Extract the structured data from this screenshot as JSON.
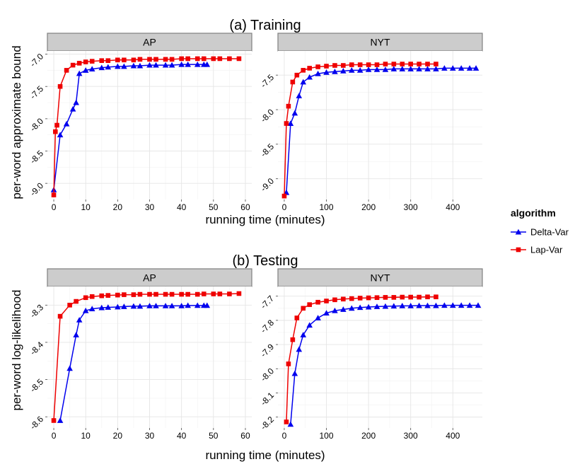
{
  "figure": {
    "legend": {
      "title": "algorithm",
      "items": [
        {
          "label": "Delta-Var",
          "color": "#0000ee",
          "marker": "triangle"
        },
        {
          "label": "Lap-Var",
          "color": "#ee0000",
          "marker": "square"
        }
      ]
    }
  },
  "chart_data": [
    {
      "type": "line",
      "title": "(a) Training",
      "panel": "AP",
      "xlabel": "running time (minutes)",
      "ylabel": "per-word approximate bound",
      "xlim": [
        -2,
        62
      ],
      "ylim": [
        -9.25,
        -6.95
      ],
      "xticks": [
        0,
        10,
        20,
        30,
        40,
        50,
        60
      ],
      "yticks": [
        -9.0,
        -8.5,
        -8.0,
        -7.5,
        -7.0
      ],
      "ytick_labels": [
        "-9.0",
        "-8.5",
        "-8.0",
        "-7.5",
        "-7.0"
      ],
      "grid": true,
      "series": [
        {
          "name": "Delta-Var",
          "x": [
            0,
            2,
            4,
            6,
            7,
            8,
            10,
            12,
            15,
            17,
            20,
            22,
            25,
            27,
            30,
            32,
            35,
            37,
            40,
            42,
            45,
            47,
            48
          ],
          "y": [
            -9.1,
            -8.25,
            -8.08,
            -7.85,
            -7.75,
            -7.3,
            -7.25,
            -7.23,
            -7.21,
            -7.2,
            -7.19,
            -7.19,
            -7.18,
            -7.18,
            -7.17,
            -7.17,
            -7.17,
            -7.17,
            -7.16,
            -7.16,
            -7.16,
            -7.16,
            -7.16
          ]
        },
        {
          "name": "Lap-Var",
          "x": [
            0,
            0.5,
            1,
            2,
            4,
            6,
            8,
            10,
            12,
            15,
            17,
            20,
            22,
            25,
            27,
            30,
            32,
            35,
            37,
            40,
            42,
            45,
            47,
            50,
            52,
            55,
            58
          ],
          "y": [
            -9.18,
            -8.2,
            -8.1,
            -7.5,
            -7.25,
            -7.17,
            -7.14,
            -7.12,
            -7.11,
            -7.1,
            -7.1,
            -7.09,
            -7.09,
            -7.09,
            -7.08,
            -7.08,
            -7.08,
            -7.08,
            -7.08,
            -7.07,
            -7.07,
            -7.07,
            -7.07,
            -7.07,
            -7.07,
            -7.07,
            -7.07
          ]
        }
      ]
    },
    {
      "type": "line",
      "title": "(a) Training",
      "panel": "NYT",
      "xlabel": "running time (minutes)",
      "ylabel": "per-word approximate bound",
      "xlim": [
        -15,
        470
      ],
      "ylim": [
        -9.3,
        -7.15
      ],
      "xticks": [
        0,
        100,
        200,
        300,
        400
      ],
      "yticks": [
        -9.0,
        -8.5,
        -8.0,
        -7.5
      ],
      "ytick_labels": [
        "-9.0",
        "-8.5",
        "-8.0",
        "-7.5"
      ],
      "grid": true,
      "series": [
        {
          "name": "Delta-Var",
          "x": [
            5,
            15,
            25,
            35,
            45,
            60,
            80,
            100,
            120,
            140,
            160,
            180,
            200,
            220,
            240,
            260,
            280,
            300,
            320,
            340,
            360,
            380,
            400,
            420,
            440,
            455
          ],
          "y": [
            -9.2,
            -8.2,
            -8.05,
            -7.8,
            -7.6,
            -7.53,
            -7.48,
            -7.46,
            -7.45,
            -7.44,
            -7.43,
            -7.43,
            -7.42,
            -7.42,
            -7.42,
            -7.41,
            -7.41,
            -7.41,
            -7.41,
            -7.41,
            -7.41,
            -7.4,
            -7.4,
            -7.4,
            -7.4,
            -7.4
          ]
        },
        {
          "name": "Lap-Var",
          "x": [
            0,
            5,
            10,
            20,
            30,
            45,
            60,
            80,
            100,
            120,
            140,
            160,
            180,
            200,
            220,
            240,
            260,
            280,
            300,
            320,
            340,
            360
          ],
          "y": [
            -9.25,
            -8.2,
            -7.95,
            -7.6,
            -7.5,
            -7.43,
            -7.4,
            -7.38,
            -7.37,
            -7.36,
            -7.36,
            -7.35,
            -7.35,
            -7.35,
            -7.35,
            -7.34,
            -7.34,
            -7.34,
            -7.34,
            -7.34,
            -7.34,
            -7.34
          ]
        }
      ]
    },
    {
      "type": "line",
      "title": "(b) Testing",
      "panel": "AP",
      "xlabel": "running time (minutes)",
      "ylabel": "per-word log-likelihood",
      "xlim": [
        -2,
        62
      ],
      "ylim": [
        -8.63,
        -8.25
      ],
      "xticks": [
        0,
        10,
        20,
        30,
        40,
        50,
        60
      ],
      "yticks": [
        -8.6,
        -8.5,
        -8.4,
        -8.3
      ],
      "ytick_labels": [
        "-8.6",
        "-8.5",
        "-8.4",
        "-8.3"
      ],
      "grid": true,
      "series": [
        {
          "name": "Delta-Var",
          "x": [
            2,
            5,
            7,
            8,
            10,
            12,
            15,
            17,
            20,
            22,
            25,
            27,
            30,
            32,
            35,
            37,
            40,
            42,
            45,
            47,
            48
          ],
          "y": [
            -8.61,
            -8.47,
            -8.38,
            -8.34,
            -8.315,
            -8.31,
            -8.307,
            -8.306,
            -8.305,
            -8.304,
            -8.303,
            -8.303,
            -8.302,
            -8.302,
            -8.302,
            -8.302,
            -8.302,
            -8.301,
            -8.301,
            -8.301,
            -8.301
          ]
        },
        {
          "name": "Lap-Var",
          "x": [
            0,
            2,
            5,
            7,
            10,
            12,
            15,
            17,
            20,
            22,
            25,
            27,
            30,
            32,
            35,
            37,
            40,
            42,
            45,
            47,
            50,
            52,
            55,
            58
          ],
          "y": [
            -8.61,
            -8.33,
            -8.3,
            -8.29,
            -8.28,
            -8.277,
            -8.275,
            -8.274,
            -8.273,
            -8.272,
            -8.272,
            -8.271,
            -8.271,
            -8.271,
            -8.271,
            -8.271,
            -8.271,
            -8.271,
            -8.271,
            -8.27,
            -8.27,
            -8.27,
            -8.27,
            -8.269
          ]
        }
      ]
    },
    {
      "type": "line",
      "title": "(b) Testing",
      "panel": "NYT",
      "xlabel": "running time (minutes)",
      "ylabel": "per-word log-likelihood",
      "xlim": [
        -15,
        470
      ],
      "ylim": [
        -8.245,
        -7.66
      ],
      "xticks": [
        0,
        100,
        200,
        300,
        400
      ],
      "yticks": [
        -8.2,
        -8.1,
        -8.0,
        -7.9,
        -7.8,
        -7.7
      ],
      "ytick_labels": [
        "-8.2",
        "-8.1",
        "-8.0",
        "-7.9",
        "-7.8",
        "-7.7"
      ],
      "grid": true,
      "series": [
        {
          "name": "Delta-Var",
          "x": [
            15,
            25,
            35,
            45,
            60,
            80,
            100,
            120,
            140,
            160,
            180,
            200,
            220,
            240,
            260,
            280,
            300,
            320,
            340,
            360,
            380,
            400,
            420,
            440,
            460
          ],
          "y": [
            -8.23,
            -8.02,
            -7.92,
            -7.86,
            -7.82,
            -7.79,
            -7.77,
            -7.76,
            -7.755,
            -7.75,
            -7.747,
            -7.745,
            -7.743,
            -7.742,
            -7.741,
            -7.74,
            -7.74,
            -7.739,
            -7.739,
            -7.739,
            -7.738,
            -7.738,
            -7.738,
            -7.738,
            -7.738
          ]
        },
        {
          "name": "Lap-Var",
          "x": [
            5,
            10,
            20,
            30,
            45,
            60,
            80,
            100,
            120,
            140,
            160,
            180,
            200,
            220,
            240,
            260,
            280,
            300,
            320,
            340,
            360
          ],
          "y": [
            -8.22,
            -7.98,
            -7.88,
            -7.79,
            -7.75,
            -7.735,
            -7.725,
            -7.72,
            -7.715,
            -7.712,
            -7.71,
            -7.708,
            -7.707,
            -7.706,
            -7.705,
            -7.705,
            -7.704,
            -7.704,
            -7.704,
            -7.703,
            -7.703
          ]
        }
      ]
    }
  ]
}
